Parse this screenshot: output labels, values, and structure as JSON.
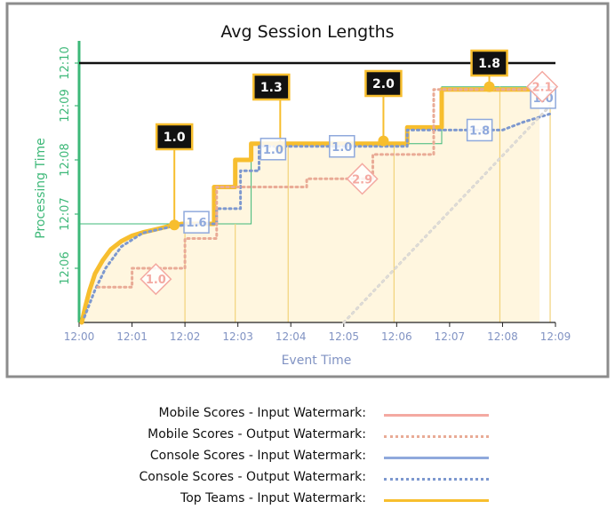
{
  "colors": {
    "mobile_input": "#f4a9a1",
    "mobile_output": "#e9ab96",
    "console_input": "#8fa9dc",
    "console_output": "#7d98cf",
    "top_input": "#f7be2e",
    "axis_green": "#3db878",
    "tick_blue": "#8193c3",
    "fill": "#fff6df",
    "frame": "#8c8c8c"
  },
  "chart_data": {
    "type": "line",
    "title": "Avg Session Lengths",
    "xlabel": "Event Time",
    "ylabel": "Processing Time",
    "x_ticks": [
      "12:00",
      "12:01",
      "12:02",
      "12:03",
      "12:04",
      "12:05",
      "12:06",
      "12:07",
      "12:08",
      "12:09"
    ],
    "y_ticks": [
      "12:06",
      "12:07",
      "12:08",
      "12:09",
      "12:10"
    ],
    "xlim": [
      0,
      9
    ],
    "ylim": [
      5,
      10
    ],
    "callouts": [
      {
        "label": "1.0",
        "x": 1.8,
        "y": 6.8
      },
      {
        "label": "1.3",
        "x": 3.8,
        "y": 8.25
      },
      {
        "label": "2.0",
        "x": 5.75,
        "y": 8.35
      },
      {
        "label": "1.8",
        "x": 7.75,
        "y": 9.35
      }
    ],
    "console_boxes": [
      {
        "label": "1.6",
        "x": 2.2,
        "y": 6.85
      },
      {
        "label": "1.0",
        "x": 3.65,
        "y": 8.2
      },
      {
        "label": "1.0",
        "x": 4.95,
        "y": 8.25
      },
      {
        "label": "1.8",
        "x": 7.55,
        "y": 8.55
      },
      {
        "label": "1.0",
        "x": 8.75,
        "y": 9.15
      }
    ],
    "mobile_diamonds": [
      {
        "label": "1.0",
        "x": 1.45,
        "y": 5.8
      },
      {
        "label": "2.9",
        "x": 5.35,
        "y": 7.65
      },
      {
        "label": "2.1",
        "x": 8.75,
        "y": 9.35
      }
    ],
    "series": [
      {
        "name": "Top Teams - Input Watermark",
        "x": [
          0.05,
          0.12,
          0.2,
          0.3,
          0.45,
          0.6,
          0.8,
          1.0,
          1.2,
          1.5,
          1.8,
          1.95,
          2.55,
          2.55,
          2.95,
          2.95,
          3.25,
          3.25,
          6.2,
          6.2,
          6.85,
          6.85,
          8.7
        ],
        "y": [
          5.0,
          5.3,
          5.6,
          5.9,
          6.15,
          6.35,
          6.5,
          6.6,
          6.66,
          6.73,
          6.8,
          6.82,
          6.82,
          7.5,
          7.5,
          8.0,
          8.0,
          8.3,
          8.3,
          8.6,
          8.6,
          9.3,
          9.3
        ]
      },
      {
        "name": "Console Scores - Output Watermark",
        "x": [
          0.1,
          0.3,
          0.5,
          0.8,
          1.2,
          1.8,
          2.3,
          2.6,
          2.6,
          3.05,
          3.05,
          3.4,
          3.4,
          6.2,
          6.2,
          8.0,
          8.4,
          8.9
        ],
        "y": [
          5.1,
          5.6,
          6.0,
          6.4,
          6.65,
          6.78,
          6.82,
          6.82,
          7.1,
          7.1,
          7.8,
          7.8,
          8.25,
          8.25,
          8.55,
          8.55,
          8.7,
          8.85
        ]
      },
      {
        "name": "Mobile Scores - Output Watermark",
        "x": [
          0.35,
          1.0,
          1.0,
          2.0,
          2.0,
          2.6,
          2.6,
          4.3,
          4.3,
          5.55,
          5.55,
          6.7,
          6.7,
          8.5
        ],
        "y": [
          5.65,
          5.65,
          6.0,
          6.0,
          6.55,
          6.55,
          7.5,
          7.5,
          7.65,
          7.65,
          8.1,
          8.1,
          9.3,
          9.3
        ]
      },
      {
        "name": "Console Scores - Input Watermark",
        "x": [
          5.0,
          8.9
        ],
        "y": [
          5.0,
          9.0
        ]
      },
      {
        "name": "Mobile Scores - Input Watermark",
        "x": [
          5.0,
          8.9
        ],
        "y": [
          5.0,
          9.0
        ]
      }
    ],
    "legend": [
      {
        "label": "Mobile Scores - Input Watermark:",
        "style": "solid",
        "color": "#f4a9a1"
      },
      {
        "label": "Mobile Scores - Output Watermark:",
        "style": "dotted",
        "color": "#e9ab96"
      },
      {
        "label": "Console Scores - Input Watermark:",
        "style": "solid",
        "color": "#8fa9dc"
      },
      {
        "label": "Console Scores - Output Watermark:",
        "style": "dotted",
        "color": "#7d98cf"
      },
      {
        "label": "Top Teams - Input Watermark:",
        "style": "solid",
        "color": "#f7be2e"
      }
    ]
  }
}
